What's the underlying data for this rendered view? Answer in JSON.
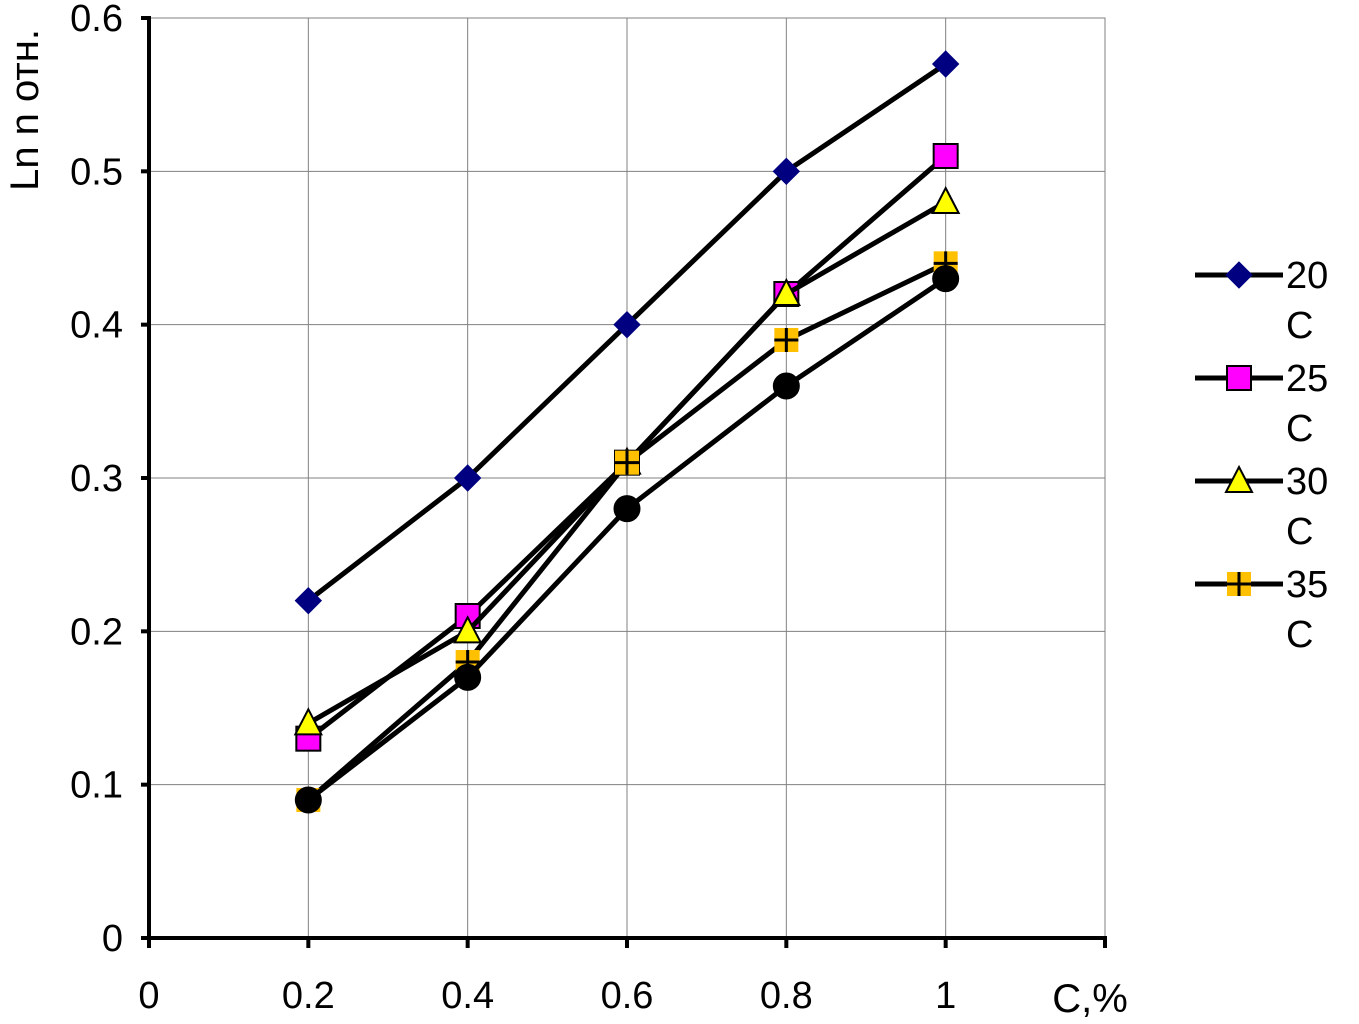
{
  "chart_data": {
    "type": "line",
    "title": "",
    "xlabel": "C,%",
    "ylabel": "Ln n отн.",
    "xlim": [
      0,
      1.2
    ],
    "ylim": [
      0,
      0.6
    ],
    "x_ticks": [
      "0",
      "0.2",
      "0.4",
      "0.6",
      "0.8",
      "1"
    ],
    "y_ticks": [
      "0",
      "0.1",
      "0.2",
      "0.3",
      "0.4",
      "0.5",
      "0.6"
    ],
    "grid": true,
    "legend_position": "right",
    "x": [
      0.2,
      0.4,
      0.6,
      0.8,
      1.0
    ],
    "series": [
      {
        "name": "20",
        "name_line2": "C",
        "values": [
          0.22,
          0.3,
          0.4,
          0.5,
          0.57
        ],
        "marker": "diamond",
        "color": "#000080",
        "in_legend": true
      },
      {
        "name": "25",
        "name_line2": "C",
        "values": [
          0.13,
          0.21,
          0.31,
          0.42,
          0.51
        ],
        "marker": "square",
        "color": "#ff00ff",
        "in_legend": true
      },
      {
        "name": "30",
        "name_line2": "C",
        "values": [
          0.14,
          0.2,
          0.31,
          0.42,
          0.48
        ],
        "marker": "triangle",
        "color": "#ffff00",
        "in_legend": true
      },
      {
        "name": "35",
        "name_line2": "C",
        "values": [
          0.09,
          0.18,
          0.31,
          0.39,
          0.44
        ],
        "marker": "plus-square",
        "color": "#ffc000",
        "in_legend": true
      },
      {
        "name": "",
        "values": [
          0.09,
          0.17,
          0.28,
          0.36,
          0.43
        ],
        "marker": "circle",
        "color": "#000000",
        "in_legend": false
      }
    ]
  }
}
